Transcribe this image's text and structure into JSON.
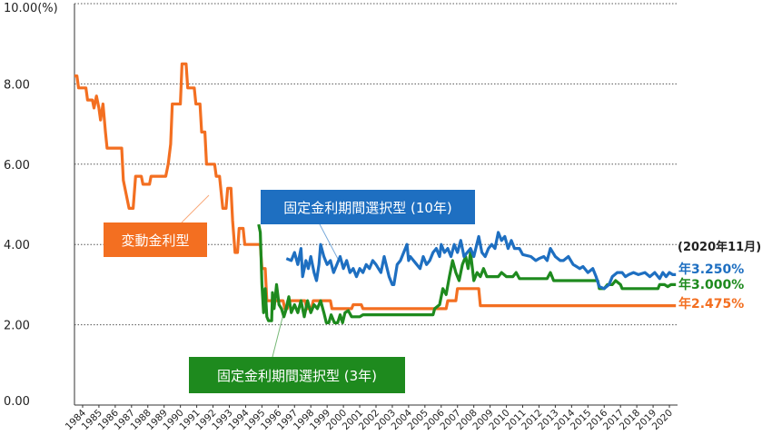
{
  "chart_data": {
    "type": "line",
    "title": "",
    "xlabel": "",
    "ylabel": "",
    "y_unit_label": "10.00(%)",
    "ylim": [
      0,
      10
    ],
    "y_ticks": [
      "0.00",
      "2.00",
      "4.00",
      "6.00",
      "8.00"
    ],
    "x_ticks": [
      "1984",
      "1985",
      "1986",
      "1987",
      "1988",
      "1989",
      "1990",
      "1991",
      "1992",
      "1993",
      "1994",
      "1995",
      "1996",
      "1997",
      "1998",
      "1999",
      "2000",
      "2001",
      "2002",
      "2003",
      "2004",
      "2005",
      "2006",
      "2007",
      "2008",
      "2009",
      "2010",
      "2011",
      "2012",
      "2013",
      "2014",
      "2015",
      "2016",
      "2017",
      "2018",
      "2019",
      "2020"
    ],
    "xlim": [
      1984.0,
      2021.0
    ],
    "grid": "horizontal dotted",
    "end_date_label": "(2020年11月)",
    "series": [
      {
        "name": "変動金利型",
        "color": "#f36f21",
        "end_label": "年2.475%",
        "points": [
          [
            1984.0,
            8.2
          ],
          [
            1984.15,
            8.2
          ],
          [
            1984.25,
            7.9
          ],
          [
            1984.7,
            7.9
          ],
          [
            1984.8,
            7.6
          ],
          [
            1985.1,
            7.6
          ],
          [
            1985.2,
            7.4
          ],
          [
            1985.35,
            7.7
          ],
          [
            1985.5,
            7.4
          ],
          [
            1985.6,
            7.1
          ],
          [
            1985.75,
            7.5
          ],
          [
            1985.9,
            6.8
          ],
          [
            1986.0,
            6.4
          ],
          [
            1986.9,
            6.4
          ],
          [
            1987.0,
            5.6
          ],
          [
            1987.2,
            5.2
          ],
          [
            1987.35,
            4.9
          ],
          [
            1987.6,
            4.9
          ],
          [
            1987.75,
            5.7
          ],
          [
            1988.1,
            5.7
          ],
          [
            1988.2,
            5.5
          ],
          [
            1988.6,
            5.5
          ],
          [
            1988.7,
            5.7
          ],
          [
            1989.6,
            5.7
          ],
          [
            1989.75,
            6.0
          ],
          [
            1989.9,
            6.5
          ],
          [
            1990.0,
            7.5
          ],
          [
            1990.5,
            7.5
          ],
          [
            1990.6,
            8.5
          ],
          [
            1990.85,
            8.5
          ],
          [
            1990.95,
            7.9
          ],
          [
            1991.35,
            7.9
          ],
          [
            1991.45,
            7.5
          ],
          [
            1991.7,
            7.5
          ],
          [
            1991.8,
            6.8
          ],
          [
            1992.0,
            6.8
          ],
          [
            1992.1,
            6.0
          ],
          [
            1992.6,
            6.0
          ],
          [
            1992.7,
            5.7
          ],
          [
            1992.9,
            5.7
          ],
          [
            1993.0,
            5.3
          ],
          [
            1993.1,
            4.9
          ],
          [
            1993.3,
            4.9
          ],
          [
            1993.4,
            5.4
          ],
          [
            1993.6,
            5.4
          ],
          [
            1993.7,
            4.6
          ],
          [
            1993.85,
            3.8
          ],
          [
            1994.0,
            3.8
          ],
          [
            1994.1,
            4.4
          ],
          [
            1994.35,
            4.4
          ],
          [
            1994.45,
            4.0
          ],
          [
            1995.4,
            4.0
          ],
          [
            1995.5,
            3.4
          ],
          [
            1995.7,
            3.4
          ],
          [
            1995.8,
            2.6
          ],
          [
            1996.8,
            2.6
          ],
          [
            1996.9,
            2.4
          ],
          [
            1997.05,
            2.4
          ],
          [
            1997.15,
            2.6
          ],
          [
            1998.15,
            2.6
          ],
          [
            1998.25,
            2.4
          ],
          [
            1998.55,
            2.4
          ],
          [
            1998.65,
            2.6
          ],
          [
            1999.7,
            2.6
          ],
          [
            1999.8,
            2.4
          ],
          [
            2001.0,
            2.4
          ],
          [
            2001.1,
            2.5
          ],
          [
            2001.6,
            2.5
          ],
          [
            2001.7,
            2.4
          ],
          [
            2006.8,
            2.4
          ],
          [
            2006.9,
            2.6
          ],
          [
            2007.4,
            2.6
          ],
          [
            2007.5,
            2.9
          ],
          [
            2008.8,
            2.9
          ],
          [
            2008.9,
            2.475
          ],
          [
            2020.9,
            2.475
          ]
        ]
      },
      {
        "name": "固定金利期間選択型 (3年)",
        "color": "#1e8a1e",
        "end_label": "年3.000%",
        "points": [
          [
            1995.3,
            4.5
          ],
          [
            1995.4,
            4.3
          ],
          [
            1995.5,
            3.0
          ],
          [
            1995.6,
            2.3
          ],
          [
            1995.7,
            2.9
          ],
          [
            1995.8,
            2.2
          ],
          [
            1995.9,
            2.1
          ],
          [
            1996.1,
            2.1
          ],
          [
            1996.15,
            2.8
          ],
          [
            1996.25,
            2.4
          ],
          [
            1996.4,
            3.0
          ],
          [
            1996.55,
            2.5
          ],
          [
            1996.7,
            2.4
          ],
          [
            1996.85,
            2.2
          ],
          [
            1997.0,
            2.4
          ],
          [
            1997.15,
            2.7
          ],
          [
            1997.3,
            2.3
          ],
          [
            1997.5,
            2.5
          ],
          [
            1997.7,
            2.3
          ],
          [
            1997.9,
            2.6
          ],
          [
            1998.1,
            2.2
          ],
          [
            1998.3,
            2.6
          ],
          [
            1998.5,
            2.3
          ],
          [
            1998.7,
            2.5
          ],
          [
            1998.9,
            2.4
          ],
          [
            1999.1,
            2.6
          ],
          [
            1999.3,
            2.3
          ],
          [
            1999.45,
            2.05
          ],
          [
            1999.6,
            2.05
          ],
          [
            1999.75,
            2.25
          ],
          [
            1999.95,
            2.05
          ],
          [
            2000.15,
            2.05
          ],
          [
            2000.3,
            2.25
          ],
          [
            2000.45,
            2.05
          ],
          [
            2000.6,
            2.3
          ],
          [
            2000.8,
            2.35
          ],
          [
            2001.0,
            2.2
          ],
          [
            2001.5,
            2.2
          ],
          [
            2001.7,
            2.25
          ],
          [
            2006.0,
            2.25
          ],
          [
            2006.1,
            2.4
          ],
          [
            2006.4,
            2.5
          ],
          [
            2006.6,
            2.9
          ],
          [
            2006.8,
            2.75
          ],
          [
            2007.0,
            3.2
          ],
          [
            2007.2,
            3.6
          ],
          [
            2007.4,
            3.3
          ],
          [
            2007.6,
            3.1
          ],
          [
            2007.8,
            3.5
          ],
          [
            2008.0,
            3.7
          ],
          [
            2008.15,
            3.4
          ],
          [
            2008.3,
            3.8
          ],
          [
            2008.5,
            3.1
          ],
          [
            2008.7,
            3.3
          ],
          [
            2008.9,
            3.2
          ],
          [
            2009.1,
            3.4
          ],
          [
            2009.3,
            3.2
          ],
          [
            2010.0,
            3.2
          ],
          [
            2010.2,
            3.3
          ],
          [
            2010.5,
            3.2
          ],
          [
            2010.9,
            3.2
          ],
          [
            2011.1,
            3.3
          ],
          [
            2011.3,
            3.15
          ],
          [
            2013.0,
            3.15
          ],
          [
            2013.2,
            3.3
          ],
          [
            2013.4,
            3.1
          ],
          [
            2016.1,
            3.1
          ],
          [
            2016.2,
            2.9
          ],
          [
            2016.5,
            2.9
          ],
          [
            2016.7,
            3.0
          ],
          [
            2017.0,
            3.0
          ],
          [
            2017.2,
            3.1
          ],
          [
            2017.5,
            3.0
          ],
          [
            2017.6,
            2.9
          ],
          [
            2019.8,
            2.9
          ],
          [
            2019.9,
            3.0
          ],
          [
            2020.2,
            3.0
          ],
          [
            2020.4,
            2.95
          ],
          [
            2020.6,
            3.0
          ],
          [
            2020.9,
            3.0
          ]
        ]
      },
      {
        "name": "固定金利期間選択型 (10年)",
        "color": "#1e6fc1",
        "end_label": "年3.250%",
        "points": [
          [
            1997.0,
            3.65
          ],
          [
            1997.3,
            3.6
          ],
          [
            1997.5,
            3.8
          ],
          [
            1997.7,
            3.5
          ],
          [
            1997.9,
            3.9
          ],
          [
            1998.0,
            3.2
          ],
          [
            1998.2,
            3.6
          ],
          [
            1998.35,
            3.4
          ],
          [
            1998.5,
            3.7
          ],
          [
            1998.7,
            3.3
          ],
          [
            1998.85,
            3.1
          ],
          [
            1999.0,
            3.5
          ],
          [
            1999.1,
            4.0
          ],
          [
            1999.3,
            3.7
          ],
          [
            1999.5,
            3.5
          ],
          [
            1999.7,
            3.6
          ],
          [
            1999.9,
            3.3
          ],
          [
            2000.1,
            3.5
          ],
          [
            2000.3,
            3.7
          ],
          [
            2000.5,
            3.4
          ],
          [
            2000.7,
            3.6
          ],
          [
            2000.9,
            3.3
          ],
          [
            2001.1,
            3.4
          ],
          [
            2001.3,
            3.2
          ],
          [
            2001.5,
            3.4
          ],
          [
            2001.7,
            3.3
          ],
          [
            2001.9,
            3.5
          ],
          [
            2002.1,
            3.4
          ],
          [
            2002.3,
            3.6
          ],
          [
            2002.5,
            3.5
          ],
          [
            2002.8,
            3.3
          ],
          [
            2003.0,
            3.7
          ],
          [
            2003.3,
            3.2
          ],
          [
            2003.5,
            3.0
          ],
          [
            2003.6,
            3.0
          ],
          [
            2003.8,
            3.5
          ],
          [
            2004.0,
            3.6
          ],
          [
            2004.2,
            3.8
          ],
          [
            2004.4,
            4.0
          ],
          [
            2004.5,
            3.6
          ],
          [
            2004.6,
            3.7
          ],
          [
            2004.8,
            3.6
          ],
          [
            2005.0,
            3.5
          ],
          [
            2005.2,
            3.4
          ],
          [
            2005.4,
            3.7
          ],
          [
            2005.6,
            3.5
          ],
          [
            2005.8,
            3.6
          ],
          [
            2006.0,
            3.8
          ],
          [
            2006.2,
            3.9
          ],
          [
            2006.4,
            3.7
          ],
          [
            2006.5,
            4.0
          ],
          [
            2006.7,
            3.8
          ],
          [
            2006.9,
            3.9
          ],
          [
            2007.1,
            3.7
          ],
          [
            2007.3,
            4.0
          ],
          [
            2007.5,
            3.8
          ],
          [
            2007.7,
            4.1
          ],
          [
            2007.9,
            3.7
          ],
          [
            2008.1,
            3.8
          ],
          [
            2008.3,
            3.9
          ],
          [
            2008.5,
            3.7
          ],
          [
            2008.8,
            4.2
          ],
          [
            2009.0,
            3.8
          ],
          [
            2009.2,
            3.7
          ],
          [
            2009.4,
            3.9
          ],
          [
            2009.6,
            4.0
          ],
          [
            2009.8,
            3.9
          ],
          [
            2010.0,
            4.3
          ],
          [
            2010.2,
            4.1
          ],
          [
            2010.4,
            4.2
          ],
          [
            2010.6,
            3.9
          ],
          [
            2010.8,
            4.1
          ],
          [
            2011.0,
            3.9
          ],
          [
            2011.3,
            3.9
          ],
          [
            2011.5,
            3.75
          ],
          [
            2012.0,
            3.7
          ],
          [
            2012.3,
            3.6
          ],
          [
            2012.5,
            3.65
          ],
          [
            2012.8,
            3.7
          ],
          [
            2013.0,
            3.6
          ],
          [
            2013.2,
            3.9
          ],
          [
            2013.5,
            3.7
          ],
          [
            2013.8,
            3.6
          ],
          [
            2014.0,
            3.6
          ],
          [
            2014.3,
            3.7
          ],
          [
            2014.6,
            3.5
          ],
          [
            2015.0,
            3.4
          ],
          [
            2015.2,
            3.45
          ],
          [
            2015.5,
            3.3
          ],
          [
            2015.8,
            3.4
          ],
          [
            2016.0,
            3.2
          ],
          [
            2016.2,
            2.95
          ],
          [
            2016.5,
            2.9
          ],
          [
            2016.8,
            3.0
          ],
          [
            2017.0,
            3.2
          ],
          [
            2017.3,
            3.3
          ],
          [
            2017.6,
            3.3
          ],
          [
            2017.8,
            3.2
          ],
          [
            2018.0,
            3.25
          ],
          [
            2018.3,
            3.3
          ],
          [
            2018.6,
            3.25
          ],
          [
            2019.0,
            3.3
          ],
          [
            2019.3,
            3.2
          ],
          [
            2019.6,
            3.3
          ],
          [
            2019.9,
            3.15
          ],
          [
            2020.1,
            3.3
          ],
          [
            2020.3,
            3.2
          ],
          [
            2020.5,
            3.3
          ],
          [
            2020.7,
            3.25
          ],
          [
            2020.9,
            3.25
          ]
        ]
      }
    ],
    "annotations": [
      {
        "text": "変動金利型",
        "box_color": "#f36f21",
        "series_index": 0
      },
      {
        "text": "固定金利期間選択型 (3年)",
        "box_color": "#1e8a1e",
        "series_index": 1
      },
      {
        "text": "固定金利期間選択型 (10年)",
        "box_color": "#1e6fc1",
        "series_index": 2
      }
    ]
  }
}
